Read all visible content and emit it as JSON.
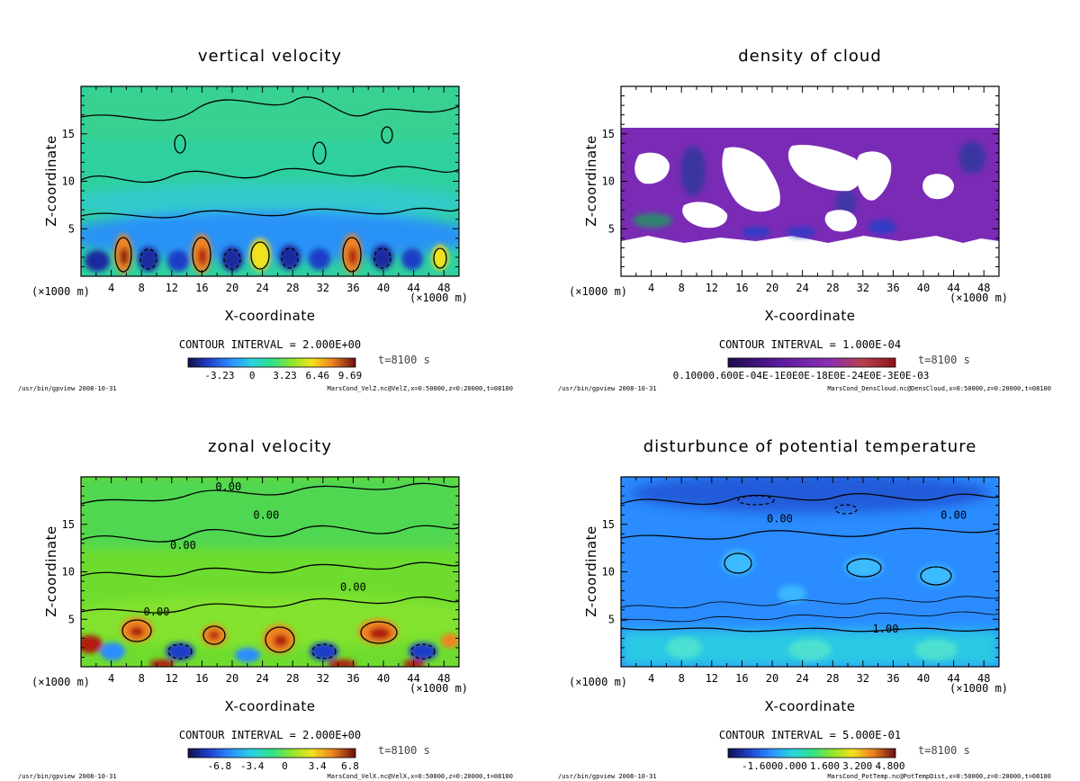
{
  "chart_data": [
    {
      "type": "heatmap",
      "title": "vertical velocity",
      "xlabel": "X-coordinate",
      "ylabel": "Z-coordinate",
      "x_unit": "(×1000 m)",
      "xlim": [
        0,
        50
      ],
      "ylim": [
        0,
        20
      ],
      "x_ticks": [
        4,
        8,
        12,
        16,
        20,
        24,
        28,
        32,
        36,
        40,
        44,
        48
      ],
      "y_ticks": [
        5,
        10,
        15
      ],
      "contour_interval": "CONTOUR INTERVAL = 2.000E+00",
      "time_label": "t=8100 s",
      "colorbar_labels": [
        "-3.23",
        "0",
        "3.23",
        "6.46",
        "9.69"
      ],
      "colormap": "rainbow",
      "footer_left": "/usr/bin/gpview   2008-10-31",
      "footer_right": "MarsCond_VelZ.nc@VelZ,x=0:50000,z=0:20000,t=08100",
      "contour_labels": []
    },
    {
      "type": "heatmap",
      "title": "density of cloud",
      "xlabel": "X-coordinate",
      "ylabel": "Z-coordinate",
      "x_unit": "(×1000 m)",
      "xlim": [
        0,
        50
      ],
      "ylim": [
        0,
        20
      ],
      "x_ticks": [
        4,
        8,
        12,
        16,
        20,
        24,
        28,
        32,
        36,
        40,
        44,
        48
      ],
      "y_ticks": [
        5,
        10,
        15
      ],
      "contour_interval": "CONTOUR INTERVAL = 1.000E-04",
      "time_label": "t=8100 s",
      "colorbar_text": "0.10000.600E-04E-1E0E0E-18E0E-24E0E-3E0E-03",
      "colormap": "purple",
      "footer_left": "/usr/bin/gpview   2008-10-31",
      "footer_right": "MarsCond_DensCloud.nc@DensCloud,x=0:50000,z=0:20000,t=08100",
      "contour_labels": []
    },
    {
      "type": "heatmap",
      "title": "zonal velocity",
      "xlabel": "X-coordinate",
      "ylabel": "Z-coordinate",
      "x_unit": "(×1000 m)",
      "xlim": [
        0,
        50
      ],
      "ylim": [
        0,
        20
      ],
      "x_ticks": [
        4,
        8,
        12,
        16,
        20,
        24,
        28,
        32,
        36,
        40,
        44,
        48
      ],
      "y_ticks": [
        5,
        10,
        15
      ],
      "contour_interval": "CONTOUR INTERVAL = 2.000E+00",
      "time_label": "t=8100 s",
      "colorbar_labels": [
        "-6.8",
        "-3.4",
        "0",
        "3.4",
        "6.8"
      ],
      "colormap": "rainbow",
      "footer_left": "/usr/bin/gpview   2008-10-31",
      "footer_right": "MarsCond_VelX.nc@VelX,x=0:50000,z=0:20000,t=08100",
      "contour_labels": [
        "0.00",
        "0.00",
        "0.00",
        "0.00",
        "0.00"
      ]
    },
    {
      "type": "heatmap",
      "title": "disturbunce of potential temperature",
      "xlabel": "X-coordinate",
      "ylabel": "Z-coordinate",
      "x_unit": "(×1000 m)",
      "xlim": [
        0,
        50
      ],
      "ylim": [
        0,
        20
      ],
      "x_ticks": [
        4,
        8,
        12,
        16,
        20,
        24,
        28,
        32,
        36,
        40,
        44,
        48
      ],
      "y_ticks": [
        5,
        10,
        15
      ],
      "contour_interval": "CONTOUR INTERVAL = 5.000E-01",
      "time_label": "t=8100 s",
      "colorbar_labels": [
        "-1.600",
        "0.000",
        "1.600",
        "3.200",
        "4.800"
      ],
      "colormap": "rainbow",
      "footer_left": "/usr/bin/gpview   2008-10-31",
      "footer_right": "MarsCond_PotTemp.nc@PotTempDist,x=0:50000,z=0:20000,t=08100",
      "contour_labels": [
        "0.00",
        "0.00",
        "1.00"
      ]
    }
  ]
}
